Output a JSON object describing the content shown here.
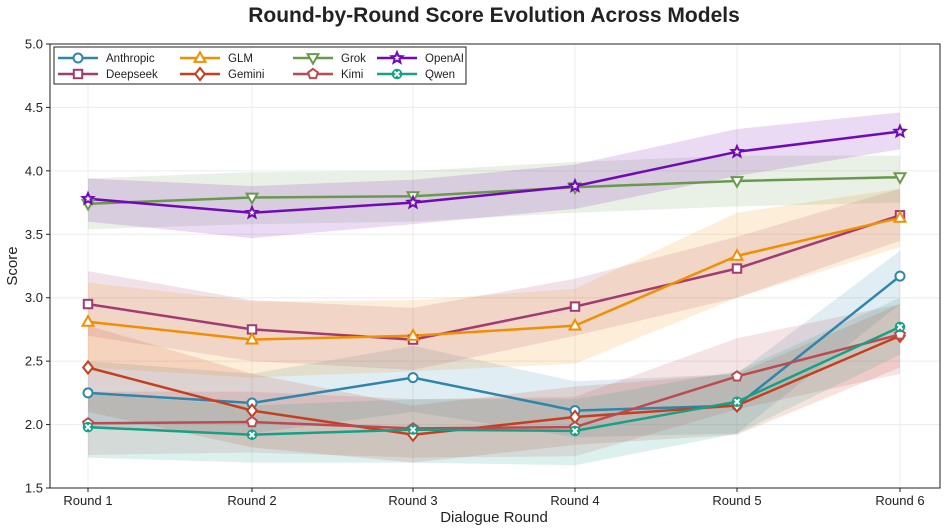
{
  "chart_data": {
    "type": "line",
    "title": "Round-by-Round Score Evolution Across Models",
    "xlabel": "Dialogue Round",
    "ylabel": "Score",
    "categories": [
      "Round 1",
      "Round 2",
      "Round 3",
      "Round 4",
      "Round 5",
      "Round 6"
    ],
    "ylim": [
      1.5,
      5.0
    ],
    "yticks": [
      "1.5",
      "2.0",
      "2.5",
      "3.0",
      "3.5",
      "4.0",
      "4.5",
      "5.0"
    ],
    "grid": true,
    "legend_position": "top-left",
    "series": [
      {
        "name": "Anthropic",
        "color": "#2e86ab",
        "marker": "circle",
        "values": [
          2.25,
          2.17,
          2.37,
          2.11,
          2.15,
          3.17
        ],
        "lower": [
          1.98,
          1.93,
          2.1,
          1.9,
          1.93,
          2.95
        ],
        "upper": [
          2.5,
          2.4,
          2.62,
          2.34,
          2.4,
          3.37
        ]
      },
      {
        "name": "Deepseek",
        "color": "#a23b72",
        "marker": "square",
        "values": [
          2.95,
          2.75,
          2.67,
          2.93,
          3.23,
          3.65
        ],
        "lower": [
          2.7,
          2.5,
          2.43,
          2.7,
          3.0,
          3.45
        ],
        "upper": [
          3.21,
          2.98,
          2.92,
          3.15,
          3.48,
          3.86
        ]
      },
      {
        "name": "GLM",
        "color": "#f18f01",
        "marker": "triangle-up",
        "values": [
          2.81,
          2.67,
          2.7,
          2.78,
          3.33,
          3.63
        ],
        "lower": [
          2.45,
          2.37,
          2.42,
          2.48,
          3.0,
          3.4
        ],
        "upper": [
          3.12,
          2.97,
          2.98,
          3.07,
          3.67,
          3.86
        ]
      },
      {
        "name": "Gemini",
        "color": "#c73e1d",
        "marker": "diamond",
        "values": [
          2.45,
          2.11,
          1.92,
          2.06,
          2.15,
          2.7
        ],
        "lower": [
          2.1,
          1.82,
          1.7,
          1.84,
          1.92,
          2.45
        ],
        "upper": [
          2.78,
          2.4,
          2.15,
          2.3,
          2.4,
          2.95
        ]
      },
      {
        "name": "Grok",
        "color": "#6a994e",
        "marker": "triangle-down",
        "values": [
          3.74,
          3.79,
          3.8,
          3.87,
          3.92,
          3.95
        ],
        "lower": [
          3.54,
          3.58,
          3.6,
          3.67,
          3.72,
          3.75
        ],
        "upper": [
          3.94,
          3.99,
          4.0,
          4.07,
          4.12,
          4.12
        ]
      },
      {
        "name": "Kimi",
        "color": "#bc4b51",
        "marker": "pentagon",
        "values": [
          2.01,
          2.02,
          1.97,
          1.98,
          2.38,
          2.71
        ],
        "lower": [
          1.76,
          1.78,
          1.74,
          1.75,
          2.12,
          2.4
        ],
        "upper": [
          2.26,
          2.26,
          2.2,
          2.22,
          2.68,
          2.95
        ]
      },
      {
        "name": "OpenAI",
        "color": "#7209b7",
        "marker": "star",
        "values": [
          3.78,
          3.67,
          3.75,
          3.88,
          4.15,
          4.31
        ],
        "lower": [
          3.6,
          3.47,
          3.58,
          3.7,
          3.96,
          4.17
        ],
        "upper": [
          3.94,
          3.88,
          3.93,
          4.05,
          4.33,
          4.46
        ]
      },
      {
        "name": "Qwen",
        "color": "#16a085",
        "marker": "x",
        "values": [
          1.98,
          1.92,
          1.96,
          1.95,
          2.18,
          2.77
        ],
        "lower": [
          1.74,
          1.7,
          1.7,
          1.68,
          1.93,
          2.55
        ],
        "upper": [
          2.24,
          2.15,
          2.2,
          2.2,
          2.42,
          3.0
        ]
      }
    ]
  }
}
